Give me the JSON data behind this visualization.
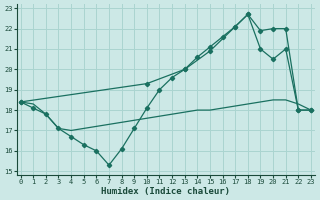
{
  "xlabel": "Humidex (Indice chaleur)",
  "bg_color": "#cce8e6",
  "grid_color": "#aad4d0",
  "line_color": "#1a7060",
  "xlim": [
    -0.3,
    23.3
  ],
  "ylim": [
    14.8,
    23.2
  ],
  "xticks": [
    0,
    1,
    2,
    3,
    4,
    5,
    6,
    7,
    8,
    9,
    10,
    11,
    12,
    13,
    14,
    15,
    16,
    17,
    18,
    19,
    20,
    21,
    22,
    23
  ],
  "yticks": [
    15,
    16,
    17,
    18,
    19,
    20,
    21,
    22,
    23
  ],
  "line_zigzag_x": [
    0,
    1,
    2,
    3,
    4,
    5,
    6,
    7,
    8,
    9,
    10,
    11,
    12,
    13,
    14,
    15,
    16,
    17,
    18,
    19,
    20,
    21,
    22,
    23
  ],
  "line_zigzag_y": [
    18.4,
    18.1,
    17.8,
    17.1,
    16.7,
    16.3,
    16.0,
    15.3,
    16.1,
    17.1,
    18.1,
    19.0,
    19.6,
    20.0,
    20.6,
    21.1,
    21.6,
    22.1,
    22.7,
    21.0,
    20.5,
    21.0,
    18.0,
    18.0
  ],
  "line_upper_x": [
    0,
    10,
    13,
    15,
    17,
    18,
    19,
    20,
    21,
    22,
    23
  ],
  "line_upper_y": [
    18.4,
    19.3,
    20.0,
    20.9,
    22.1,
    22.7,
    21.9,
    22.0,
    22.0,
    18.0,
    18.0
  ],
  "line_flat_x": [
    0,
    1,
    2,
    3,
    4,
    5,
    6,
    7,
    8,
    9,
    10,
    11,
    12,
    13,
    14,
    15,
    16,
    17,
    18,
    19,
    20,
    21,
    22,
    23
  ],
  "line_flat_y": [
    18.4,
    18.3,
    17.8,
    17.1,
    17.0,
    17.1,
    17.2,
    17.3,
    17.4,
    17.5,
    17.6,
    17.7,
    17.8,
    17.9,
    18.0,
    18.0,
    18.1,
    18.2,
    18.3,
    18.4,
    18.5,
    18.5,
    18.3,
    18.0
  ]
}
